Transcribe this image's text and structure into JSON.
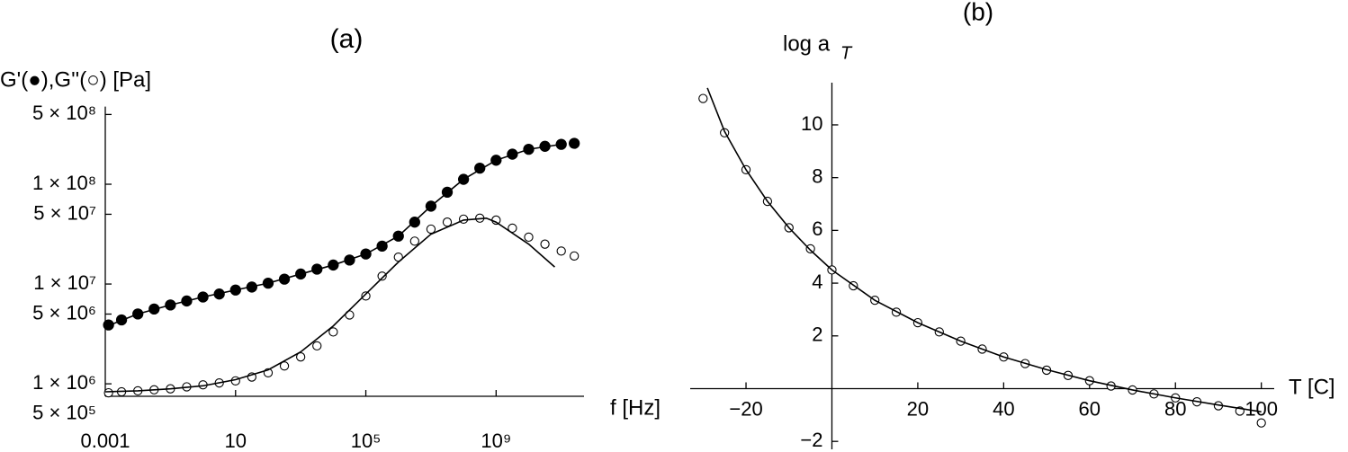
{
  "chart_data": [
    {
      "type": "scatter",
      "title": "(a)",
      "ylabel": "G'(●),G''(○) [Pa]",
      "xlabel": "f [Hz]",
      "xscale": "log",
      "yscale": "log",
      "xlim": [
        0.001,
        500000000000.0
      ],
      "ylim": [
        750000,
        600000000
      ],
      "xticks": [
        0.001,
        10,
        {
          "value": 100000,
          "label": "10⁵"
        },
        {
          "value": 1000000000,
          "label": "10⁹"
        }
      ],
      "yticks": [
        {
          "value": 500000,
          "label": "5 × 10⁵"
        },
        {
          "value": 1000000,
          "label": "1 × 10⁶"
        },
        {
          "value": 5000000,
          "label": "5 × 10⁶"
        },
        {
          "value": 10000000,
          "label": "1 × 10⁷"
        },
        {
          "value": 50000000,
          "label": "5 × 10⁷"
        },
        {
          "value": 100000000,
          "label": "1 × 10⁸"
        },
        {
          "value": 500000000,
          "label": "5 × 10⁸"
        }
      ],
      "series": [
        {
          "marker": "filled",
          "color": "#000000",
          "x": [
            0.00126,
            0.00316,
            0.01,
            0.0316,
            0.1,
            0.316,
            1,
            3.16,
            10,
            31.6,
            100,
            316,
            1000,
            3160,
            10000,
            31600,
            100000,
            316000,
            1000000,
            3160000,
            10000000.0,
            31600000.0,
            100000000.0,
            316000000.0,
            1000000000.0,
            3160000000.0,
            10000000000.0,
            31600000000.0,
            100000000000.0,
            251000000000.0
          ],
          "values": [
            3890000,
            4370000,
            5010000,
            5620000,
            6170000,
            6760000,
            7410000,
            7940000,
            8710000,
            9330000,
            10200000,
            11200000,
            12600000,
            14100000,
            15500000,
            17400000,
            20000000,
            24000000,
            30200000,
            41700000,
            60300000,
            83200000,
            112000000,
            145000000,
            174000000,
            200000000,
            224000000,
            240000000,
            251000000,
            257000000
          ]
        },
        {
          "marker": "open",
          "color": "#000000",
          "x": [
            0.00126,
            0.00316,
            0.01,
            0.0316,
            0.1,
            0.316,
            1,
            3.16,
            10,
            31.6,
            100,
            316,
            1000,
            3160,
            10000,
            31600,
            100000,
            316000,
            1000000,
            3160000,
            10000000.0,
            31600000.0,
            100000000.0,
            316000000.0,
            1000000000.0,
            3160000000.0,
            10000000000.0,
            31600000000.0,
            100000000000.0,
            251000000000.0
          ],
          "values": [
            813000,
            832000,
            851000,
            871000,
            891000,
            933000,
            977000,
            1020000,
            1070000,
            1170000,
            1290000,
            1510000,
            1860000,
            2400000,
            3310000,
            4900000,
            7590000,
            12000000,
            18600000,
            26900000,
            35500000,
            41700000,
            44700000,
            45700000,
            43700000,
            36300000,
            29500000,
            25100000,
            21400000,
            19100000
          ]
        },
        {
          "marker": "none",
          "line": true,
          "color": "#000000",
          "x": [
            0.001,
            0.01,
            0.1,
            1,
            10,
            100,
            1000,
            10000,
            100000,
            1000000,
            10000000.0,
            100000000.0,
            1000000000.0,
            10000000000.0,
            100000000000.0
          ],
          "values": [
            3720000,
            5010000,
            6170000,
            7410000,
            8710000,
            10200000,
            12600000,
            15500000,
            20000000,
            30200000,
            60300000,
            112000000,
            174000000,
            224000000,
            251000000
          ]
        },
        {
          "marker": "none",
          "line": true,
          "color": "#000000",
          "x": [
            0.001,
            0.01,
            0.1,
            1,
            10,
            100,
            1000,
            10000,
            100000,
            1000000,
            10000000.0,
            100000000.0,
            501000000.0,
            1000000000.0,
            10000000000.0,
            63100000000.0
          ],
          "values": [
            832000,
            851000,
            891000,
            955000,
            1100000,
            1380000,
            2090000,
            3800000,
            7940000,
            16600000,
            31600000,
            43700000,
            45700000,
            41700000,
            25100000,
            14800000
          ]
        }
      ]
    },
    {
      "type": "scatter",
      "title": "(b)",
      "ylabel": "log a",
      "ylabel_sub": "T",
      "xlabel": "T [C]",
      "axes_cross_zero": true,
      "xlim": [
        -33,
        103
      ],
      "ylim": [
        -2.3,
        11.6
      ],
      "xticks": [
        {
          "value": -20,
          "label": "−20"
        },
        20,
        40,
        60,
        80,
        100
      ],
      "yticks": [
        {
          "value": -2,
          "label": "−2"
        },
        2,
        4,
        6,
        8,
        10
      ],
      "series": [
        {
          "marker": "open",
          "color": "#000000",
          "x": [
            -30,
            -25,
            -20,
            -15,
            -10,
            -5,
            0,
            5,
            10,
            15,
            20,
            25,
            30,
            35,
            40,
            45,
            50,
            55,
            60,
            65,
            70,
            75,
            80,
            85,
            90,
            95,
            100
          ],
          "values": [
            11.0,
            9.7,
            8.3,
            7.1,
            6.1,
            5.3,
            4.5,
            3.9,
            3.35,
            2.9,
            2.5,
            2.15,
            1.8,
            1.5,
            1.2,
            0.95,
            0.7,
            0.5,
            0.3,
            0.1,
            -0.05,
            -0.2,
            -0.35,
            -0.5,
            -0.65,
            -0.85,
            -1.3
          ]
        },
        {
          "marker": "none",
          "line": true,
          "color": "#000000",
          "x": [
            -29,
            -25,
            -20,
            -15,
            -10,
            -5,
            0,
            10,
            20,
            30,
            40,
            50,
            60,
            70,
            80,
            90,
            100
          ],
          "values": [
            11.4,
            9.75,
            8.3,
            7.1,
            6.1,
            5.25,
            4.5,
            3.35,
            2.5,
            1.8,
            1.2,
            0.72,
            0.3,
            -0.05,
            -0.35,
            -0.62,
            -0.88
          ]
        }
      ]
    }
  ]
}
